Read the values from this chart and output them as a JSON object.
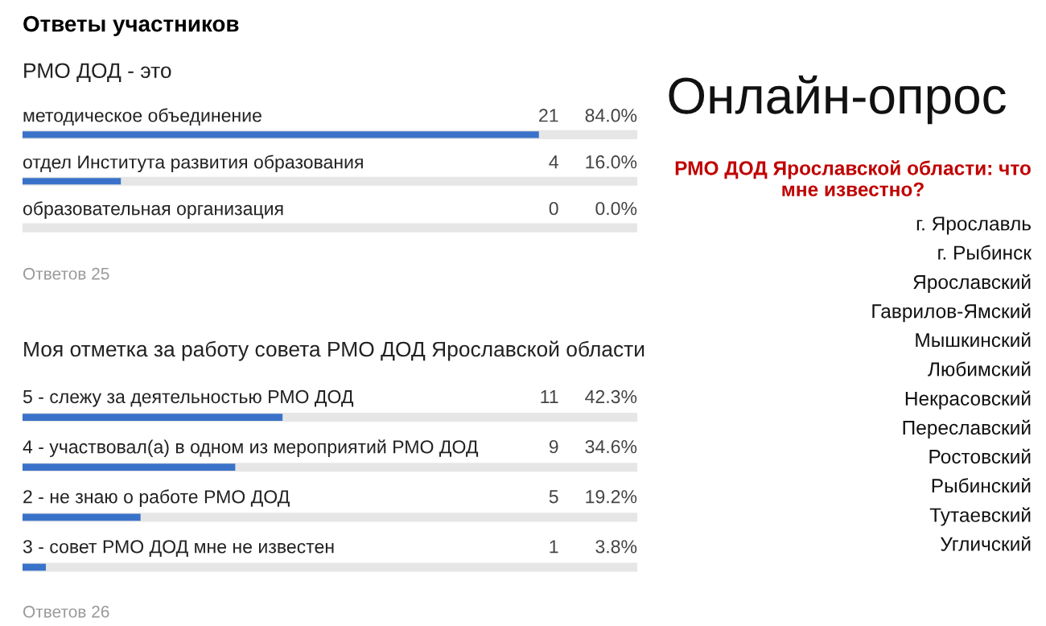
{
  "chart_data": [
    {
      "type": "bar",
      "orientation": "horizontal",
      "title": "Ответы участников",
      "subtitle": "РМО ДОД - это",
      "categories": [
        "методическое объединение",
        "отдел Института развития образования",
        "образовательная организация"
      ],
      "values": [
        84.0,
        16.0,
        0.0
      ],
      "value_labels": [
        "21     84.0%",
        "4     16.0%",
        "0       0.0%"
      ],
      "color": "#3a72c9",
      "xlim": [
        0,
        100
      ],
      "annotations": [
        "Ответов 25"
      ]
    },
    {
      "type": "bar",
      "orientation": "horizontal",
      "subtitle": "Моя отметка за работу совета РМО ДОД Ярославской области",
      "categories": [
        "5 - слежу за деятельностью РМО ДОД",
        "4 - участвовал(а) в одном из мероприятий РМО ДОД",
        "2 - не знаю о работе РМО ДОД",
        "3 - совет РМО ДОД мне не известен"
      ],
      "values": [
        42.3,
        34.6,
        19.2,
        3.8
      ],
      "value_labels": [
        "11     42.3%",
        "9     34.6%",
        "5     19.2%",
        "1       3.8%"
      ],
      "color": "#3a72c9",
      "xlim": [
        0,
        100
      ],
      "annotations": [
        "Ответов 26"
      ]
    },
    {
      "type": "other",
      "title": "Онлайн-опрос",
      "subtitle": "РМО ДОД Ярославской области: что мне известно?",
      "annotations": [
        "г. Ярославль",
        "г. Рыбинск",
        "Ярославский",
        "Гаврилов-Ямский",
        "Мышкинский",
        "Любимский",
        "Некрасовский",
        "Переславский",
        "Ростовский",
        "Рыбинский",
        "Тутаевский",
        "Угличский"
      ]
    }
  ]
}
